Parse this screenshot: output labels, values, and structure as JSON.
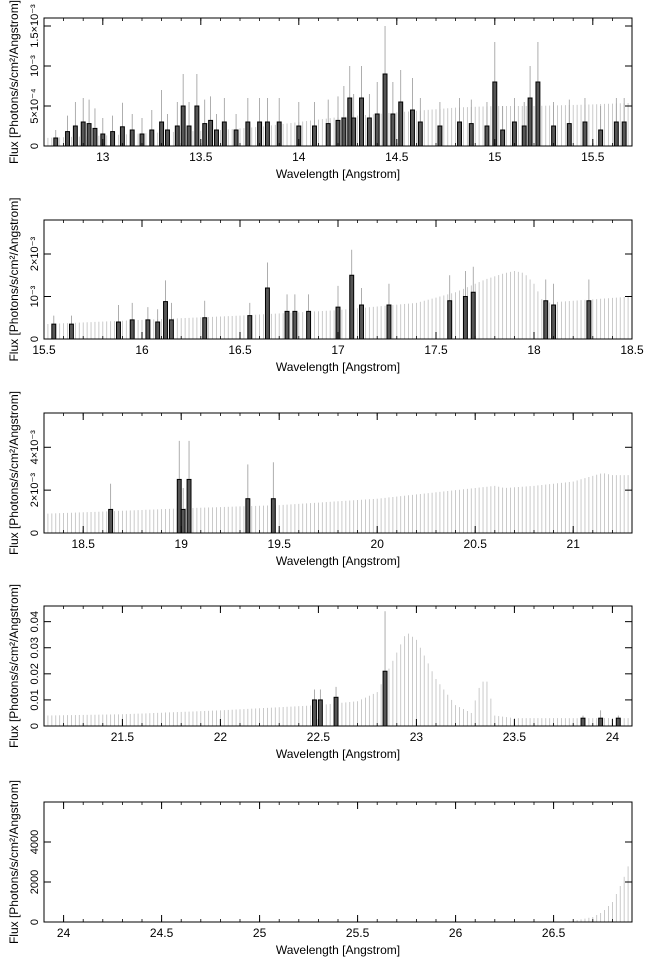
{
  "chart_data": [
    {
      "type": "bar",
      "xlabel": "Wavelength [Angstrom]",
      "ylabel": "Flux [Photons/s/cm²/Angstrom]",
      "xlim": [
        12.7,
        15.7
      ],
      "ylim": [
        0,
        0.0016
      ],
      "xticks": [
        "13",
        "13.5",
        "14",
        "14.5",
        "15",
        "15.5"
      ],
      "xtick_values": [
        13,
        13.5,
        14,
        14.5,
        15,
        15.5
      ],
      "yticks": [
        "0",
        "5×10⁻⁴",
        "10⁻³",
        "1.5×10⁻³"
      ],
      "ytick_values": [
        0,
        0.0005,
        0.001,
        0.0015
      ],
      "model": {
        "x": [
          12.7,
          13.0,
          13.3,
          13.6,
          13.8,
          14.0,
          14.2,
          14.5,
          14.8,
          15.0,
          15.2,
          15.5,
          15.7
        ],
        "y": [
          0.0001,
          0.00013,
          0.00017,
          0.0002,
          0.00024,
          0.0003,
          0.00036,
          0.00042,
          0.00048,
          0.0005,
          0.0005,
          0.00052,
          0.00054
        ]
      },
      "bins": {
        "x": [
          12.76,
          12.82,
          12.86,
          12.9,
          12.93,
          12.96,
          13.0,
          13.05,
          13.1,
          13.15,
          13.2,
          13.25,
          13.3,
          13.33,
          13.38,
          13.41,
          13.44,
          13.48,
          13.52,
          13.55,
          13.58,
          13.62,
          13.68,
          13.74,
          13.8,
          13.84,
          13.9,
          14.0,
          14.08,
          14.15,
          14.2,
          14.23,
          14.26,
          14.28,
          14.32,
          14.36,
          14.4,
          14.44,
          14.48,
          14.52,
          14.58,
          14.62,
          14.72,
          14.82,
          14.88,
          14.96,
          15.0,
          15.04,
          15.1,
          15.15,
          15.18,
          15.22,
          15.3,
          15.38,
          15.46,
          15.54,
          15.62,
          15.66
        ],
        "y": [
          0.0001,
          0.00018,
          0.00025,
          0.0003,
          0.00028,
          0.00022,
          0.00015,
          0.00018,
          0.00024,
          0.0002,
          0.00015,
          0.0002,
          0.0003,
          0.0002,
          0.00025,
          0.0005,
          0.00025,
          0.0005,
          0.00028,
          0.00032,
          0.0002,
          0.0003,
          0.0002,
          0.0003,
          0.0003,
          0.0003,
          0.0003,
          0.00025,
          0.00025,
          0.00028,
          0.00032,
          0.00035,
          0.0006,
          0.00035,
          0.0006,
          0.00035,
          0.0004,
          0.0009,
          0.0004,
          0.00055,
          0.00045,
          0.0003,
          0.00025,
          0.0003,
          0.00028,
          0.00025,
          0.0008,
          0.0002,
          0.0003,
          0.00025,
          0.0006,
          0.0008,
          0.00025,
          0.00028,
          0.0003,
          0.0002,
          0.0003,
          0.0003
        ],
        "err": [
          0.0001,
          0.0002,
          0.0003,
          0.0003,
          0.0003,
          0.00025,
          0.0002,
          0.0002,
          0.0003,
          0.0002,
          0.0002,
          0.00025,
          0.0004,
          0.0002,
          0.0003,
          0.0004,
          0.0003,
          0.0004,
          0.0003,
          0.0003,
          0.0002,
          0.0003,
          0.0002,
          0.0003,
          0.0003,
          0.0003,
          0.0003,
          0.0003,
          0.0003,
          0.0003,
          0.0003,
          0.0004,
          0.0004,
          0.0003,
          0.0004,
          0.0003,
          0.0004,
          0.0006,
          0.0004,
          0.0004,
          0.0004,
          0.0003,
          0.0003,
          0.0003,
          0.0003,
          0.0003,
          0.0005,
          0.0003,
          0.0003,
          0.0003,
          0.0004,
          0.0005,
          0.0003,
          0.0003,
          0.0003,
          0.0003,
          0.0003,
          0.0003
        ]
      }
    },
    {
      "type": "bar",
      "xlabel": "Wavelength [Angstrom]",
      "ylabel": "Flux [Photons/s/cm²/Angstrom]",
      "xlim": [
        15.5,
        18.5
      ],
      "ylim": [
        0,
        0.0028
      ],
      "xticks": [
        "15.5",
        "16",
        "16.5",
        "17",
        "17.5",
        "18",
        "18.5"
      ],
      "xtick_values": [
        15.5,
        16,
        16.5,
        17,
        17.5,
        18,
        18.5
      ],
      "yticks": [
        "0",
        "10⁻³",
        "2×10⁻³"
      ],
      "ytick_values": [
        0,
        0.001,
        0.002
      ],
      "model": {
        "x": [
          15.5,
          16.0,
          16.5,
          17.0,
          17.4,
          17.6,
          17.75,
          17.85,
          17.9,
          17.95,
          18.0,
          18.05,
          18.2,
          18.5
        ],
        "y": [
          0.00035,
          0.00045,
          0.00055,
          0.00068,
          0.00085,
          0.0011,
          0.0014,
          0.00155,
          0.0016,
          0.00155,
          0.0013,
          0.00085,
          0.0009,
          0.001
        ]
      },
      "bins": {
        "x": [
          15.55,
          15.64,
          15.88,
          15.95,
          16.03,
          16.08,
          16.12,
          16.15,
          16.32,
          16.55,
          16.64,
          16.74,
          16.78,
          16.85,
          17.0,
          17.07,
          17.12,
          17.26,
          17.57,
          17.65,
          17.69,
          18.06,
          18.1,
          18.28
        ],
        "y": [
          0.00035,
          0.00035,
          0.0004,
          0.00045,
          0.00045,
          0.0004,
          0.00088,
          0.00045,
          0.0005,
          0.00055,
          0.0012,
          0.00065,
          0.00065,
          0.00065,
          0.00075,
          0.0015,
          0.0008,
          0.0008,
          0.0009,
          0.001,
          0.0011,
          0.0009,
          0.0008,
          0.0009
        ],
        "err": [
          0.0002,
          0.0002,
          0.0004,
          0.0004,
          0.0003,
          0.0003,
          0.0005,
          0.0004,
          0.0004,
          0.0003,
          0.0006,
          0.0004,
          0.0004,
          0.0004,
          0.0005,
          0.0006,
          0.0004,
          0.0005,
          0.0006,
          0.0006,
          0.0006,
          0.0005,
          0.0005,
          0.0005
        ]
      }
    },
    {
      "type": "bar",
      "xlabel": "Wavelength [Angstrom]",
      "ylabel": "Flux [Photons/s/cm²/Angstrom]",
      "xlim": [
        18.3,
        21.3
      ],
      "ylim": [
        0,
        0.0056
      ],
      "xticks": [
        "18.5",
        "19",
        "19.5",
        "20",
        "20.5",
        "21"
      ],
      "xtick_values": [
        18.5,
        19,
        19.5,
        20,
        20.5,
        21
      ],
      "yticks": [
        "0",
        "2×10⁻³",
        "4×10⁻³"
      ],
      "ytick_values": [
        0,
        0.002,
        0.004
      ],
      "model": {
        "x": [
          18.3,
          18.6,
          19.0,
          19.5,
          20.0,
          20.3,
          20.6,
          20.65,
          20.8,
          21.0,
          21.15,
          21.2,
          21.3
        ],
        "y": [
          0.0009,
          0.001,
          0.00115,
          0.0013,
          0.0016,
          0.0019,
          0.0022,
          0.0021,
          0.0022,
          0.0024,
          0.0028,
          0.0027,
          0.0027
        ]
      },
      "bins": {
        "x": [
          18.64,
          18.99,
          19.01,
          19.04,
          19.34,
          19.47
        ],
        "y": [
          0.0011,
          0.0025,
          0.0011,
          0.0025,
          0.0016,
          0.0016
        ],
        "err": [
          0.0012,
          0.0018,
          0.001,
          0.0018,
          0.0016,
          0.0017
        ]
      }
    },
    {
      "type": "bar",
      "xlabel": "Wavelength [Angstrom]",
      "ylabel": "Flux [Photons/s/cm²/Angstrom]",
      "xlim": [
        21.1,
        24.1
      ],
      "ylim": [
        0,
        0.046
      ],
      "xticks": [
        "21.5",
        "22",
        "22.5",
        "23",
        "23.5",
        "24"
      ],
      "xtick_values": [
        21.5,
        22,
        22.5,
        23,
        23.5,
        24
      ],
      "yticks": [
        "0",
        "0.01",
        "0.02",
        "0.03",
        "0.04"
      ],
      "ytick_values": [
        0,
        0.01,
        0.02,
        0.03,
        0.04
      ],
      "model": {
        "x": [
          21.1,
          21.5,
          22.0,
          22.5,
          22.7,
          22.8,
          22.88,
          22.95,
          23.0,
          23.1,
          23.2,
          23.28,
          23.33,
          23.36,
          23.4,
          23.5,
          24.1
        ],
        "y": [
          0.004,
          0.0045,
          0.006,
          0.008,
          0.0095,
          0.013,
          0.025,
          0.036,
          0.033,
          0.018,
          0.008,
          0.005,
          0.017,
          0.017,
          0.004,
          0.003,
          0.003
        ]
      },
      "bins": {
        "x": [
          22.48,
          22.51,
          22.59,
          22.84,
          23.85,
          23.94,
          24.03
        ],
        "y": [
          0.01,
          0.01,
          0.011,
          0.021,
          0.003,
          0.003,
          0.003
        ],
        "err": [
          0.004,
          0.004,
          0.004,
          0.023,
          0.001,
          0.003,
          0.001
        ]
      }
    },
    {
      "type": "bar",
      "xlabel": "Wavelength [Angstrom]",
      "ylabel": "Flux [Photons/s/cm²/Angstrom]",
      "xlim": [
        23.9,
        26.9
      ],
      "ylim": [
        0,
        6000
      ],
      "xticks": [
        "24",
        "24.5",
        "25",
        "25.5",
        "26",
        "26.5"
      ],
      "xtick_values": [
        24,
        24.5,
        25,
        25.5,
        26,
        26.5
      ],
      "yticks": [
        "0",
        "2000",
        "4000"
      ],
      "ytick_values": [
        0,
        2000,
        4000
      ],
      "model": {
        "x": [
          23.9,
          26.5,
          26.6,
          26.7,
          26.75,
          26.8,
          26.85,
          26.9
        ],
        "y": [
          0,
          0,
          50,
          250,
          500,
          1000,
          2000,
          3300
        ]
      },
      "bins": {
        "x": [],
        "y": [],
        "err": []
      }
    }
  ]
}
